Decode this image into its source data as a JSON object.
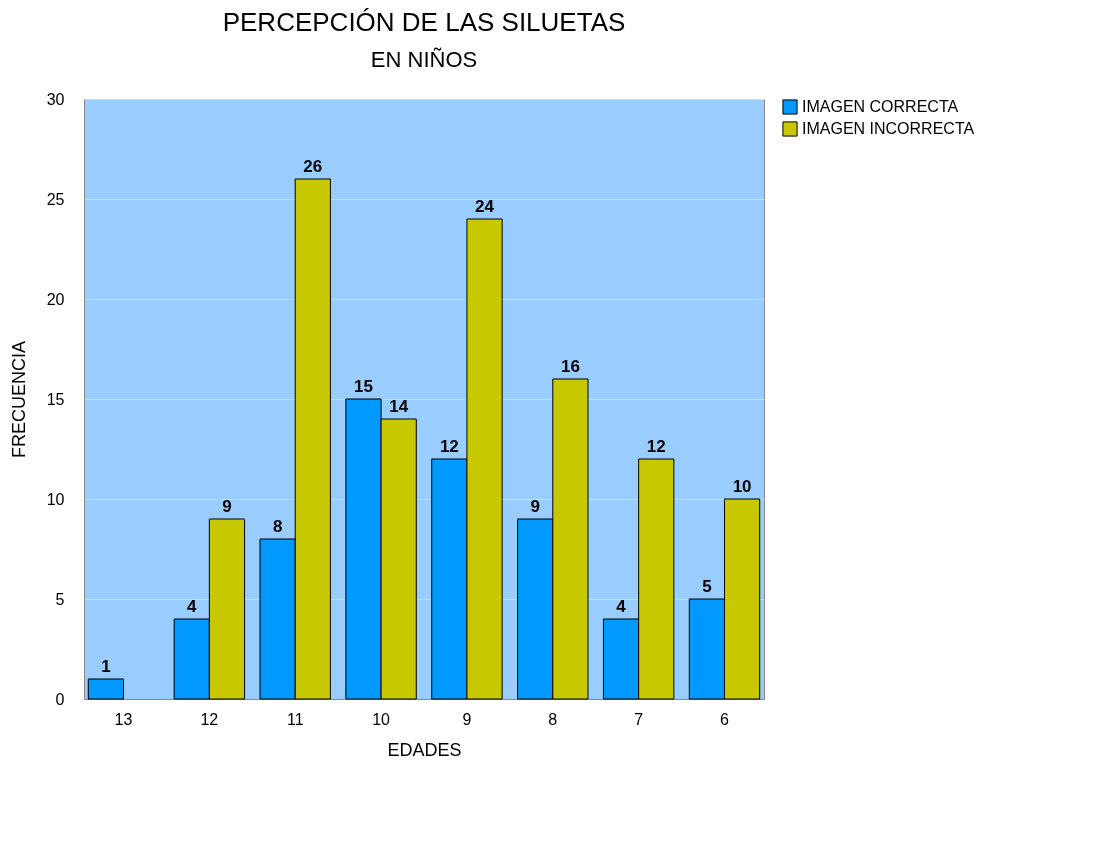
{
  "chart_data": {
    "type": "bar",
    "title": "PERCEPCIÓN DE LAS SILUETAS",
    "subtitle": "EN NIÑOS",
    "xlabel": "EDADES",
    "ylabel": "FRECUENCIA",
    "categories": [
      "13",
      "12",
      "11",
      "10",
      "9",
      "8",
      "7",
      "6"
    ],
    "series": [
      {
        "name": "IMAGEN CORRECTA",
        "color": "#0099ff",
        "values": [
          1,
          4,
          8,
          15,
          12,
          9,
          4,
          5
        ]
      },
      {
        "name": "IMAGEN INCORRECTA",
        "color": "#c8c800",
        "values": [
          null,
          9,
          26,
          14,
          24,
          16,
          12,
          10
        ]
      }
    ],
    "ylim": [
      0,
      30
    ],
    "yticks": [
      0,
      5,
      10,
      15,
      20,
      25,
      30
    ],
    "grid": "y",
    "legend": "right",
    "data_labels": true
  }
}
